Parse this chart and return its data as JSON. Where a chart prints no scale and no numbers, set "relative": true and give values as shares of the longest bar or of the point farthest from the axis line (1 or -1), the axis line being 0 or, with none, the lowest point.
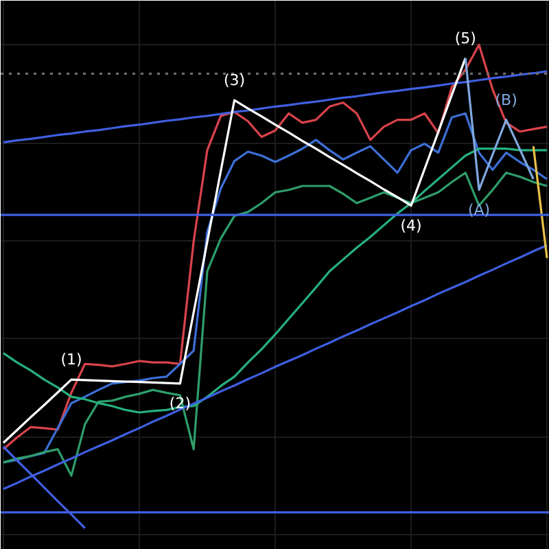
{
  "chart_data": {
    "type": "line",
    "relative": true,
    "grid": true,
    "marker": "none",
    "line_style": "solid",
    "categories": [
      null,
      null,
      null,
      null,
      null,
      null,
      null,
      null,
      null,
      null,
      null,
      null,
      null,
      null,
      null,
      null,
      null,
      null,
      null,
      null,
      null,
      null,
      null,
      null,
      null,
      null,
      null,
      null,
      null,
      null,
      null,
      null,
      null,
      null,
      null,
      null,
      null,
      null,
      null,
      null,
      null
    ],
    "series": [
      {
        "color": "#d9434b",
        "values": [
          0.175,
          0.199,
          0.22,
          0.218,
          0.215,
          0.29,
          0.349,
          0.347,
          0.344,
          0.349,
          0.355,
          0.352,
          0.352,
          0.349,
          0.599,
          0.785,
          0.855,
          0.863,
          0.844,
          0.812,
          0.825,
          0.86,
          0.841,
          0.847,
          0.874,
          0.882,
          0.86,
          0.806,
          0.833,
          0.847,
          0.847,
          0.86,
          0.82,
          0.914,
          0.949,
          1,
          0.909,
          0.841,
          0.823,
          0.828,
          0.833
        ]
      },
      {
        "color": "#3d6fd6",
        "values": [
          0.148,
          0.153,
          0.161,
          0.167,
          0.218,
          0.269,
          0.282,
          0.296,
          0.309,
          0.312,
          0.315,
          0.32,
          0.323,
          0.349,
          0.376,
          0.618,
          0.707,
          0.763,
          0.782,
          0.774,
          0.761,
          0.774,
          0.788,
          0.806,
          0.785,
          0.766,
          0.78,
          0.793,
          0.766,
          0.739,
          0.785,
          0.798,
          0.78,
          0.852,
          0.86,
          0.78,
          0.745,
          0.78,
          0.761,
          0.745,
          0.726
        ]
      },
      {
        "color": "#2e9e6a",
        "values": [
          0.148,
          0.156,
          0.161,
          0.169,
          0.175,
          0.121,
          0.226,
          0.272,
          0.274,
          0.282,
          0.288,
          0.296,
          0.29,
          0.285,
          0.175,
          0.538,
          0.605,
          0.651,
          0.659,
          0.677,
          0.699,
          0.704,
          0.712,
          0.712,
          0.712,
          0.696,
          0.677,
          0.688,
          0.699,
          0.688,
          0.677,
          0.688,
          0.699,
          0.72,
          0.739,
          0.672,
          0.704,
          0.739,
          0.731,
          0.72,
          0.712
        ]
      },
      {
        "color": "#26b07f",
        "values": [
          0.371,
          0.352,
          0.336,
          0.317,
          0.301,
          0.282,
          0.277,
          0.269,
          0.263,
          0.255,
          0.25,
          0.253,
          0.255,
          0.261,
          0.263,
          0.282,
          0.304,
          0.323,
          0.352,
          0.379,
          0.409,
          0.441,
          0.473,
          0.505,
          0.538,
          0.562,
          0.586,
          0.608,
          0.632,
          0.656,
          0.677,
          0.702,
          0.726,
          0.75,
          0.774,
          0.788,
          0.788,
          0.788,
          0.785,
          0.785,
          0.785
        ]
      },
      {
        "color": "#3f5fe0",
        "values": [
          0.801,
          0.805,
          0.808,
          0.812,
          0.816,
          0.819,
          0.823,
          0.826,
          0.83,
          0.834,
          0.837,
          0.841,
          0.845,
          0.848,
          0.852,
          0.855,
          0.859,
          0.863,
          0.866,
          0.87,
          0.874,
          0.877,
          0.881,
          0.884,
          0.888,
          0.892,
          0.895,
          0.899,
          0.903,
          0.906,
          0.91,
          0.913,
          0.917,
          0.921,
          0.924,
          0.928,
          0.932,
          0.935,
          0.939,
          0.942,
          0.946
        ]
      },
      {
        "color": "#3f5fe0",
        "values": [
          0.094,
          0.106,
          0.119,
          0.131,
          0.144,
          0.156,
          0.169,
          0.181,
          0.193,
          0.206,
          0.218,
          0.231,
          0.243,
          0.256,
          0.268,
          0.28,
          0.293,
          0.305,
          0.318,
          0.33,
          0.343,
          0.355,
          0.367,
          0.38,
          0.392,
          0.405,
          0.417,
          0.43,
          0.442,
          0.454,
          0.467,
          0.479,
          0.492,
          0.504,
          0.516,
          0.529,
          0.541,
          0.554,
          0.566,
          0.579,
          0.591
        ]
      },
      {
        "color": "#3f5fe0",
        "values": [
          0.18,
          0.152,
          0.125,
          0.097,
          0.069,
          0.042,
          0.014,
          null,
          null,
          null,
          null,
          null,
          null,
          null,
          null,
          null,
          null,
          null,
          null,
          null,
          null,
          null,
          null,
          null,
          null,
          null,
          null,
          null,
          null,
          null,
          null,
          null,
          null,
          null,
          null,
          null,
          null,
          null,
          null,
          null,
          null
        ]
      },
      {
        "color": "#ffffff",
        "values": [
          0.188,
          0.214,
          0.24,
          0.265,
          0.291,
          0.317,
          0.316,
          0.315,
          0.314,
          0.313,
          0.312,
          0.311,
          0.31,
          0.309,
          0.454,
          0.598,
          0.743,
          0.887,
          0.87,
          0.854,
          0.837,
          0.821,
          0.804,
          0.788,
          0.771,
          0.755,
          0.738,
          0.722,
          0.705,
          0.689,
          0.672,
          0.747,
          0.822,
          0.898,
          0.973,
          null,
          null,
          null,
          null,
          null,
          null
        ]
      },
      {
        "color": "#7fa9e0",
        "values": [
          null,
          null,
          null,
          null,
          null,
          null,
          null,
          null,
          null,
          null,
          null,
          null,
          null,
          null,
          null,
          null,
          null,
          null,
          null,
          null,
          null,
          null,
          null,
          null,
          null,
          null,
          null,
          null,
          null,
          null,
          null,
          null,
          null,
          null,
          0.973,
          0.704,
          0.776,
          0.847,
          0.787,
          0.726,
          null
        ]
      },
      {
        "color": "#e8c14a",
        "values": [
          null,
          null,
          null,
          null,
          null,
          null,
          null,
          null,
          null,
          null,
          null,
          null,
          null,
          null,
          null,
          null,
          null,
          null,
          null,
          null,
          null,
          null,
          null,
          null,
          null,
          null,
          null,
          null,
          null,
          null,
          null,
          null,
          null,
          null,
          null,
          null,
          null,
          null,
          null,
          0.793,
          0.565
        ]
      }
    ],
    "ref_lines": [
      {
        "axis": "y",
        "value": 0.653,
        "color": "#3f5fe0",
        "line_style": "solid"
      },
      {
        "axis": "y",
        "value": 0.046,
        "color": "#3f5fe0",
        "line_style": "solid"
      },
      {
        "axis": "y",
        "value": 0.941,
        "color": "#6b6b6b",
        "line_style": "dotted"
      }
    ],
    "annotations": [
      {
        "text": "(1)",
        "y": 0.317
      },
      {
        "text": "(2)",
        "y": 0.309
      },
      {
        "text": "(3)",
        "y": 0.887
      },
      {
        "text": "(4)",
        "y": 0.672
      },
      {
        "text": "(5)",
        "y": 0.973
      },
      {
        "text": "(A)",
        "y": 0.704
      },
      {
        "text": "(B)",
        "y": 0.847
      }
    ]
  }
}
